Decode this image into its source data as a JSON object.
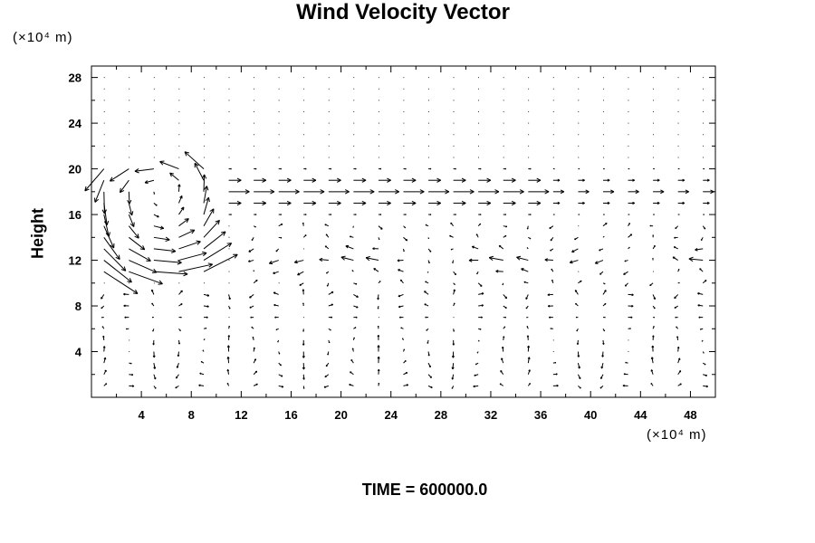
{
  "chart_data": {
    "type": "vector-field",
    "title": "Wind Velocity Vector",
    "ylabel": "Height",
    "xunit": "(×10⁴ m)",
    "yunit": "(×10⁴ m)",
    "xlim": [
      0,
      50
    ],
    "ylim": [
      0,
      29
    ],
    "xticks": [
      "4",
      "8",
      "12",
      "16",
      "20",
      "24",
      "28",
      "32",
      "36",
      "40",
      "44",
      "48"
    ],
    "yticks": [
      "4",
      "8",
      "12",
      "16",
      "20",
      "24",
      "28"
    ],
    "footer": "TIME = 600000.0"
  }
}
